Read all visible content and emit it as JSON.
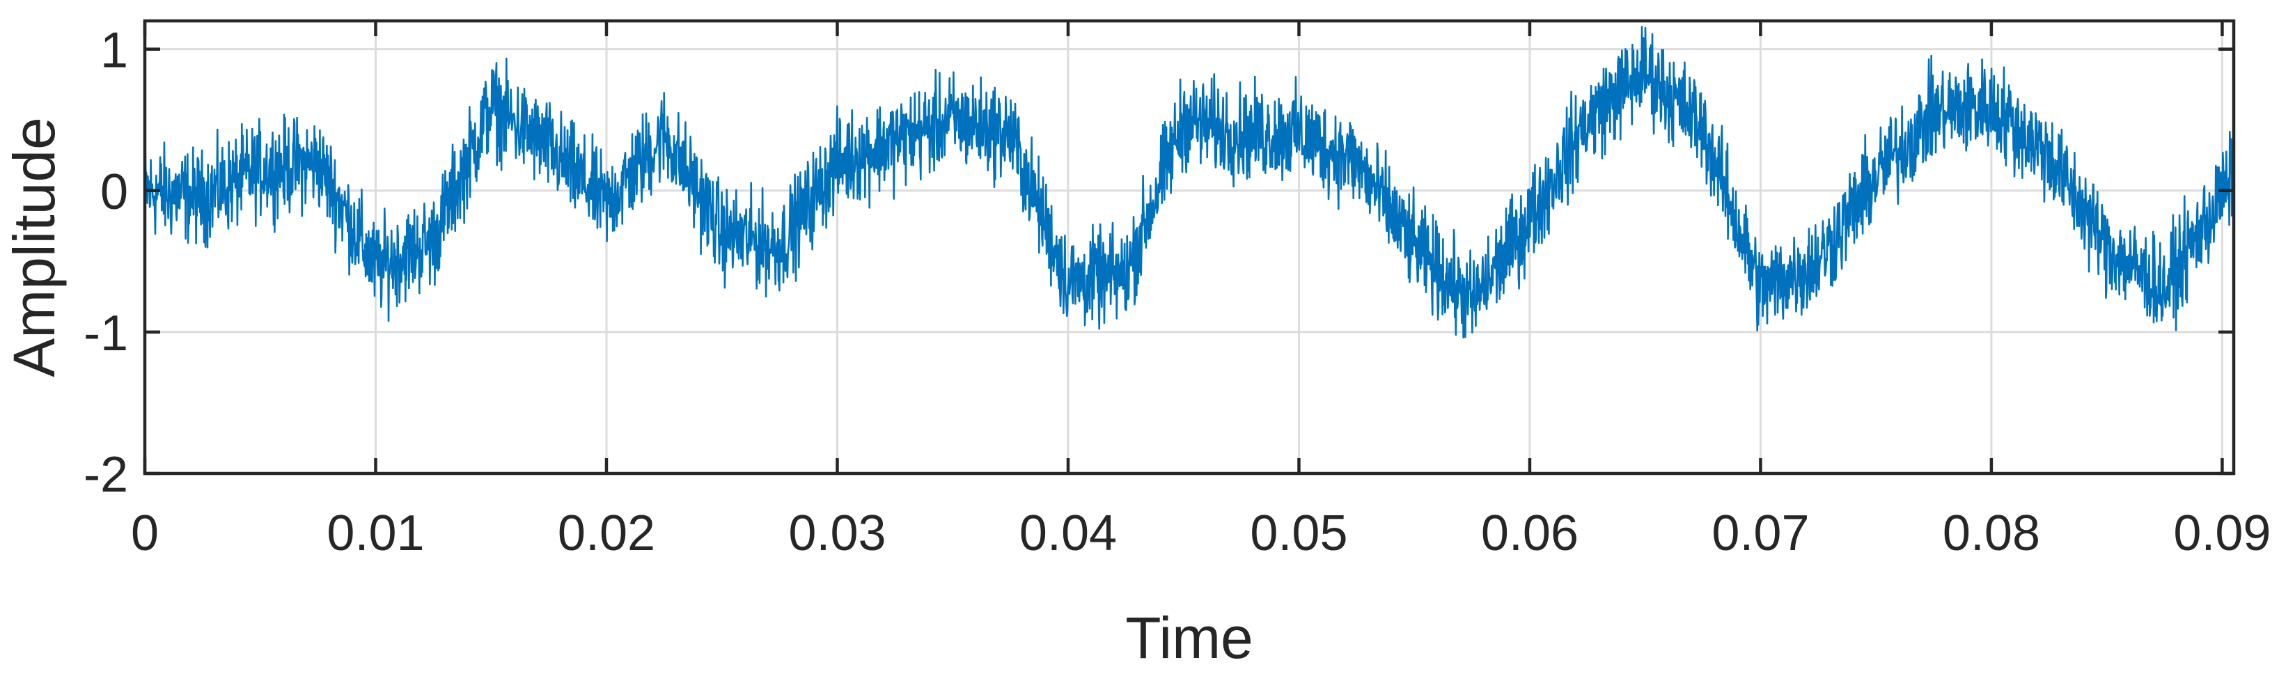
{
  "chart_data": {
    "type": "line",
    "title": "",
    "xlabel": "Time",
    "ylabel": "Amplitude",
    "xlim": [
      0,
      0.0905
    ],
    "ylim": [
      -2,
      1.2
    ],
    "x_ticks": [
      0,
      0.01,
      0.02,
      0.03,
      0.04,
      0.05,
      0.06,
      0.07,
      0.08,
      0.09
    ],
    "x_tick_labels": [
      "0",
      "0.01",
      "0.02",
      "0.03",
      "0.04",
      "0.05",
      "0.06",
      "0.07",
      "0.08",
      "0.09"
    ],
    "y_ticks": [
      -2,
      -1,
      0,
      1
    ],
    "y_tick_labels": [
      "-2",
      "-1",
      "0",
      "1"
    ],
    "grid": true,
    "legend": "none",
    "series": [
      {
        "color": "#0072BD",
        "x": [
          0,
          0.0025,
          0.005,
          0.0075,
          0.01,
          0.0125,
          0.015,
          0.0175,
          0.02,
          0.0225,
          0.025,
          0.0275,
          0.03,
          0.0325,
          0.035,
          0.0375,
          0.04,
          0.0425,
          0.045,
          0.0475,
          0.05,
          0.0525,
          0.055,
          0.0575,
          0.06,
          0.0625,
          0.065,
          0.0675,
          0.07,
          0.0725,
          0.075,
          0.0775,
          0.08,
          0.0825,
          0.085,
          0.0875,
          0.0905
        ],
        "y": [
          0.0,
          -0.05,
          0.15,
          0.2,
          -0.55,
          -0.35,
          0.6,
          0.3,
          -0.1,
          0.4,
          -0.3,
          -0.4,
          0.2,
          0.35,
          0.5,
          0.4,
          -0.65,
          -0.6,
          0.5,
          0.4,
          0.4,
          0.2,
          -0.4,
          -0.8,
          -0.2,
          0.5,
          0.85,
          0.45,
          -0.7,
          -0.5,
          0.1,
          0.55,
          0.6,
          0.25,
          -0.4,
          -0.7,
          0.1
        ]
      }
    ]
  }
}
